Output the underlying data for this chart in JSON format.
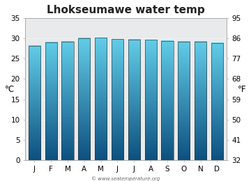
{
  "title": "Lhokseumawe water temp",
  "months": [
    "J",
    "F",
    "M",
    "A",
    "M",
    "J",
    "J",
    "A",
    "S",
    "O",
    "N",
    "D"
  ],
  "values_c": [
    28.2,
    29.0,
    29.2,
    30.0,
    30.1,
    29.8,
    29.7,
    29.6,
    29.3,
    29.2,
    29.2,
    28.8
  ],
  "ylabel_left": "°C",
  "ylabel_right": "°F",
  "ylim_c": [
    0,
    35
  ],
  "yticks_c": [
    0,
    5,
    10,
    15,
    20,
    25,
    30,
    35
  ],
  "yticks_f": [
    32,
    41,
    50,
    59,
    68,
    77,
    86,
    95
  ],
  "bar_color_top": "#62cde8",
  "bar_color_bottom": "#0d5080",
  "background_color": "#ffffff",
  "plot_bg_color": "#e8eaec",
  "bar_edge_color": "#2a2a2a",
  "watermark": "© www.seatemperature.org",
  "title_fontsize": 11,
  "axis_fontsize": 7.5,
  "label_fontsize": 8.5
}
